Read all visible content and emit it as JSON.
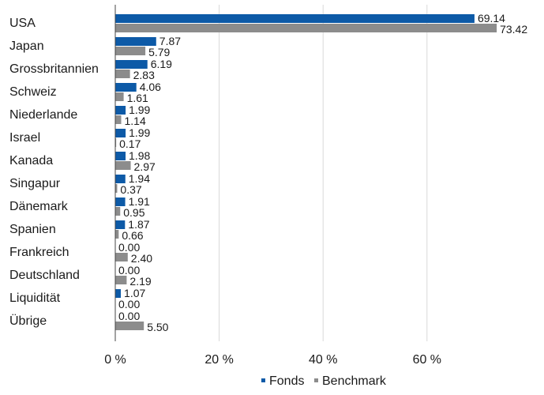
{
  "chart_data": {
    "type": "bar",
    "orientation": "horizontal",
    "categories": [
      "USA",
      "Japan",
      "Grossbritannien",
      "Schweiz",
      "Niederlande",
      "Israel",
      "Kanada",
      "Singapur",
      "Dänemark",
      "Spanien",
      "Frankreich",
      "Deutschland",
      "Liquidität",
      "Übrige"
    ],
    "series": [
      {
        "name": "Fonds",
        "color": "#0d5aa7",
        "values": [
          69.14,
          7.87,
          6.19,
          4.06,
          1.99,
          1.99,
          1.98,
          1.94,
          1.91,
          1.87,
          0.0,
          0.0,
          1.07,
          0.0
        ],
        "labels": [
          "69.14",
          "7.87",
          "6.19",
          "4.06",
          "1.99",
          "1.99",
          "1.98",
          "1.94",
          "1.91",
          "1.87",
          "0.00",
          "0.00",
          "1.07",
          "0.00"
        ]
      },
      {
        "name": "Benchmark",
        "color": "#8c8c8c",
        "values": [
          73.42,
          5.79,
          2.83,
          1.61,
          1.14,
          0.17,
          2.97,
          0.37,
          0.95,
          0.66,
          2.4,
          2.19,
          0.0,
          5.5
        ],
        "labels": [
          "73.42",
          "5.79",
          "2.83",
          "1.61",
          "1.14",
          "0.17",
          "2.97",
          "0.37",
          "0.95",
          "0.66",
          "2.40",
          "2.19",
          "0.00",
          "5.50"
        ]
      }
    ],
    "xlim": [
      0,
      80
    ],
    "xticks": [
      0,
      20,
      40,
      60
    ],
    "xtick_labels": [
      "0 %",
      "20 %",
      "40 %",
      "60 %"
    ],
    "grid": true,
    "legend_position": "bottom-center",
    "gridline_color": "#d9d9d9",
    "axis_color": "#444444",
    "text_color": "#1a1a1a"
  }
}
